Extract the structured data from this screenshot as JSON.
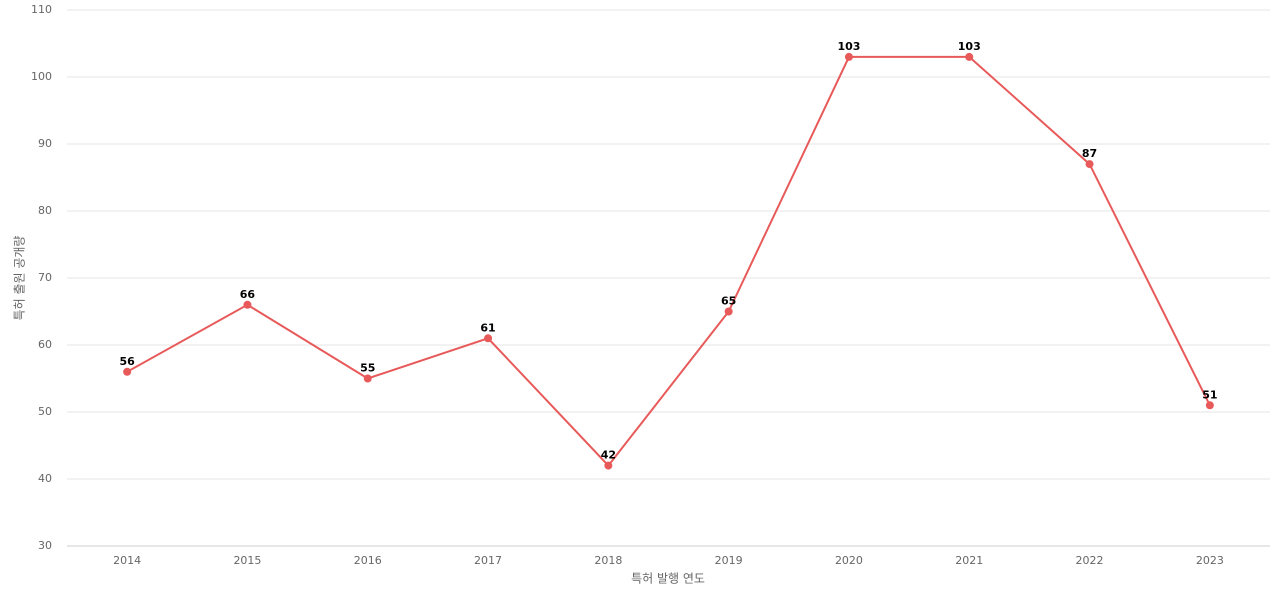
{
  "chart_data": {
    "type": "line",
    "x_label": "특허 발행 연도",
    "y_label": "특허 출원 공개량",
    "categories": [
      "2014",
      "2015",
      "2016",
      "2017",
      "2018",
      "2019",
      "2020",
      "2021",
      "2022",
      "2023"
    ],
    "series": [
      {
        "name": "특허 출원 공개량",
        "color": "#e85a5a",
        "values": [
          56,
          66,
          55,
          61,
          42,
          65,
          103,
          103,
          87,
          51
        ]
      }
    ],
    "ylim": [
      30,
      110
    ],
    "yticks": [
      30,
      40,
      50,
      60,
      70,
      80,
      90,
      100,
      110
    ],
    "grid": true
  }
}
